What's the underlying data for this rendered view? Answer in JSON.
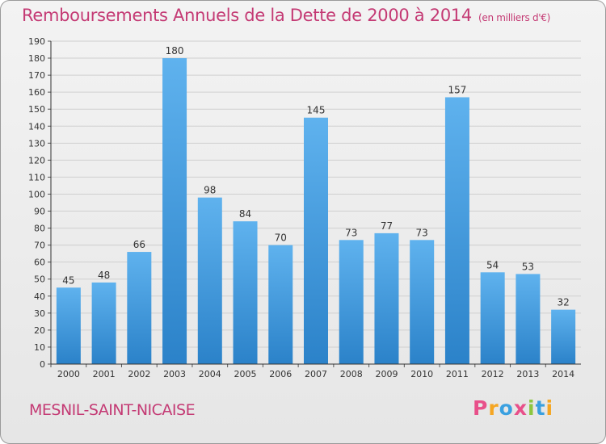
{
  "chart_data": {
    "type": "bar",
    "title": "Remboursements Annuels de la Dette de 2000 à 2014",
    "unit_note": "(en milliers d'€)",
    "categories": [
      "2000",
      "2001",
      "2002",
      "2003",
      "2004",
      "2005",
      "2006",
      "2007",
      "2008",
      "2009",
      "2010",
      "2011",
      "2012",
      "2013",
      "2014"
    ],
    "values": [
      45,
      48,
      66,
      180,
      98,
      84,
      70,
      145,
      73,
      77,
      73,
      157,
      54,
      53,
      32
    ],
    "ylim": [
      0,
      190
    ],
    "ytick_step": 10,
    "xlabel": "",
    "ylabel": "",
    "grid": true,
    "bar_color": "#5aaae6"
  },
  "footer": {
    "commune": "MESNIL-SAINT-NICAISE",
    "brand": "Proxiti",
    "brand_colors": [
      "#e8508a",
      "#f5a623",
      "#3aa0e0",
      "#e8508a",
      "#8cc63f",
      "#3aa0e0",
      "#f5a623"
    ]
  }
}
